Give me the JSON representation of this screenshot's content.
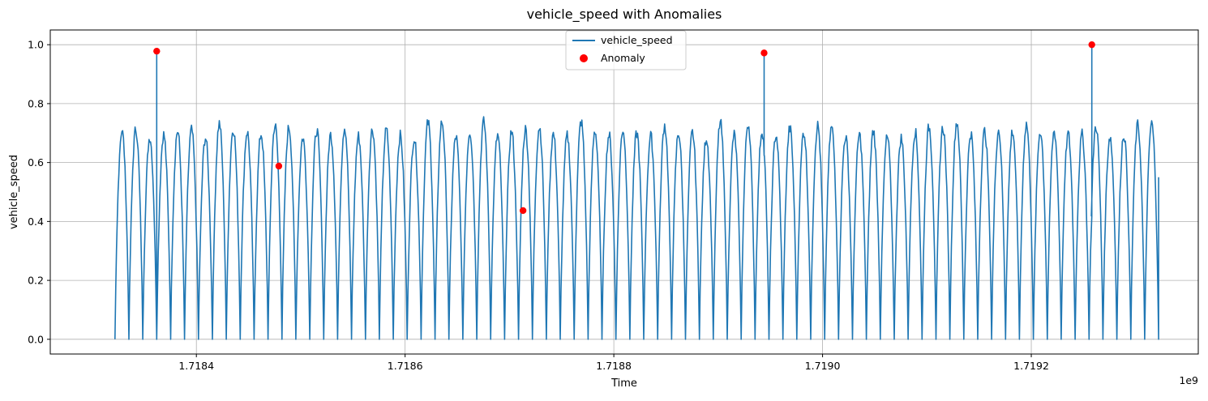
{
  "chart_data": {
    "type": "line",
    "title": "vehicle_speed with Anomalies",
    "xlabel": "Time",
    "ylabel": "vehicle_speed",
    "x_offset_label": "1e9",
    "xlim": [
      1718260000.0,
      1719360000.0
    ],
    "ylim": [
      -0.05,
      1.05
    ],
    "grid": true,
    "legend_placement": "upper center",
    "x_ticks": [
      1718400000.0,
      1718600000.0,
      1718800000.0,
      1719000000.0,
      1719200000.0
    ],
    "x_tick_labels": [
      "1.7184",
      "1.7186",
      "1.7188",
      "1.7190",
      "1.7192"
    ],
    "y_ticks": [
      0.0,
      0.2,
      0.4,
      0.6,
      0.8,
      1.0
    ],
    "y_tick_labels": [
      "0.0",
      "0.2",
      "0.4",
      "0.6",
      "0.8",
      "1.0"
    ],
    "series": [
      {
        "name": "vehicle_speed",
        "kind": "line",
        "color": "#1f77b4",
        "x_start": 1718322000.0,
        "x_end": 1719322000.0,
        "cycle_count": 75,
        "min": 0.0,
        "peak_range": [
          0.68,
          0.74
        ],
        "end_value": 0.55,
        "spikes": [
          {
            "x": 1718362000.0,
            "y": 0.978
          },
          {
            "x": 1718944000.0,
            "y": 0.972
          },
          {
            "x": 1719258000.0,
            "y": 1.0
          }
        ]
      },
      {
        "name": "Anomaly",
        "kind": "scatter",
        "color": "#ff0000",
        "points": [
          {
            "x": 1718362000.0,
            "y": 0.978
          },
          {
            "x": 1718479000.0,
            "y": 0.588
          },
          {
            "x": 1718713000.0,
            "y": 0.437
          },
          {
            "x": 1718944000.0,
            "y": 0.972
          },
          {
            "x": 1719258000.0,
            "y": 1.0
          }
        ]
      }
    ]
  }
}
